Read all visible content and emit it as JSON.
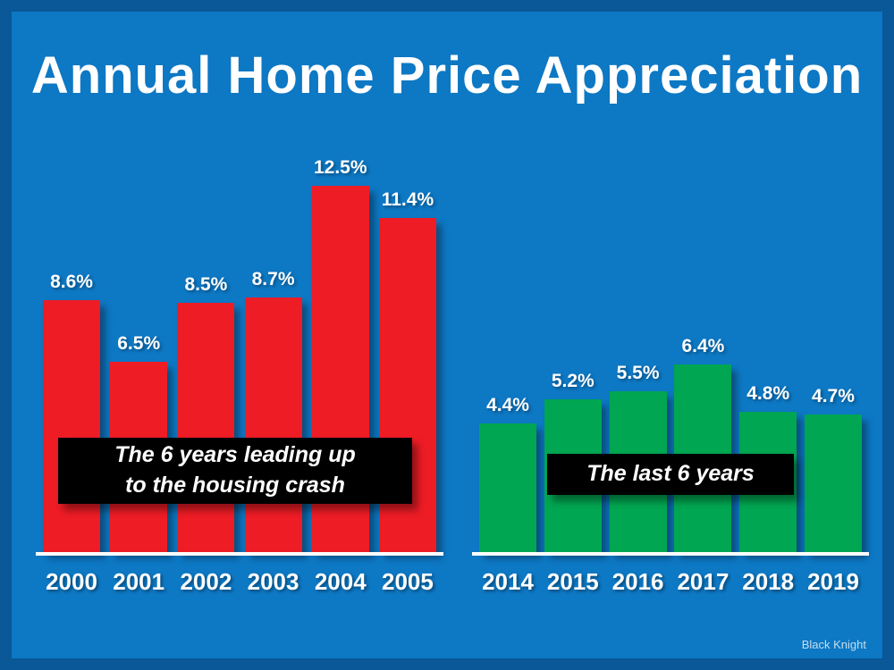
{
  "chart_data": {
    "type": "bar",
    "title": "Annual Home Price Appreciation",
    "value_suffix": "%",
    "ylim": [
      0,
      13.5
    ],
    "grid": false,
    "legend": "none",
    "source": "Black Knight",
    "groups": [
      {
        "name": "six-years-before-housing-crash",
        "color": "#ee1c25",
        "annotation_lines": [
          "The 6 years leading up",
          "to the housing crash"
        ],
        "categories": [
          "2000",
          "2001",
          "2002",
          "2003",
          "2004",
          "2005"
        ],
        "values": [
          8.6,
          6.5,
          8.5,
          8.7,
          12.5,
          11.4
        ]
      },
      {
        "name": "last-six-years",
        "color": "#00a651",
        "annotation_lines": [
          "The last 6 years"
        ],
        "categories": [
          "2014",
          "2015",
          "2016",
          "2017",
          "2018",
          "2019"
        ],
        "values": [
          4.4,
          5.2,
          5.5,
          6.4,
          4.8,
          4.7
        ]
      }
    ]
  }
}
